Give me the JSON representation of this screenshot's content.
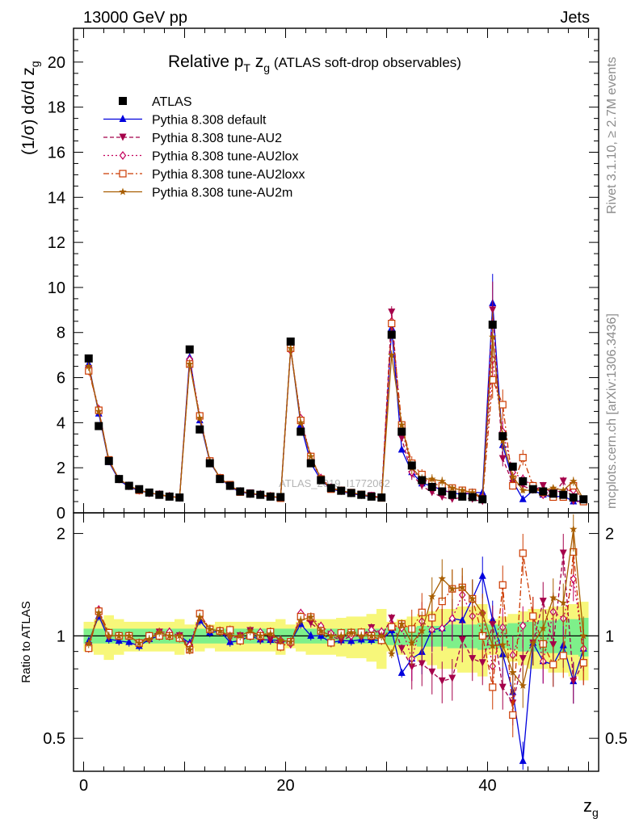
{
  "header": {
    "left": "13000 GeV pp",
    "right": "Jets"
  },
  "side_labels": {
    "rivet": "Rivet 3.1.10, ≥ 2.7M events",
    "mcplots": "mcplots.cern.ch [arXiv:1306.3436]"
  },
  "watermark": "ATLAS_2019_I1772062",
  "colors": {
    "data": "#000000",
    "default": "#0000dd",
    "au2": "#a5004a",
    "au2lox": "#c4005c",
    "au2loxx": "#cc3a00",
    "au2m": "#a85e00",
    "band_inner": "#7ef08a",
    "band_outer": "#f7f77a"
  },
  "chart_data": [
    {
      "type": "line",
      "panel": "main",
      "title_main": "Relative p",
      "title_sub_T": "T",
      "title_z": " z",
      "title_sub_g": "g",
      "title_rest": " (ATLAS soft-drop observables)",
      "ylabel": "(1/σ) dσ/d z",
      "ylabel_sub": "g",
      "ylim": [
        0,
        21.5
      ],
      "xlim": [
        -1,
        51
      ],
      "yticks": [
        0,
        2,
        4,
        6,
        8,
        10,
        12,
        14,
        16,
        18,
        20
      ],
      "ytick_labels": [
        "0",
        "2",
        "4",
        "6",
        "8",
        "10",
        "12",
        "14",
        "16",
        "18",
        "20"
      ],
      "legend_position": "top-left",
      "legend": [
        {
          "label": "ATLAS",
          "key": "data"
        },
        {
          "label": "Pythia 8.308 default",
          "key": "default"
        },
        {
          "label": "Pythia 8.308 tune-AU2",
          "key": "au2"
        },
        {
          "label": "Pythia 8.308 tune-AU2lox",
          "key": "au2lox"
        },
        {
          "label": "Pythia 8.308 tune-AU2loxx",
          "key": "au2loxx"
        },
        {
          "label": "Pythia 8.308 tune-AU2m",
          "key": "au2m"
        }
      ],
      "x": [
        0.5,
        1.5,
        2.5,
        3.5,
        4.5,
        5.5,
        6.5,
        7.5,
        8.5,
        9.5,
        10.5,
        11.5,
        12.5,
        13.5,
        14.5,
        15.5,
        16.5,
        17.5,
        18.5,
        19.5,
        20.5,
        21.5,
        22.5,
        23.5,
        24.5,
        25.5,
        26.5,
        27.5,
        28.5,
        29.5,
        30.5,
        31.5,
        32.5,
        33.5,
        34.5,
        35.5,
        36.5,
        37.5,
        38.5,
        39.5,
        40.5,
        41.5,
        42.5,
        43.5,
        44.5,
        45.5,
        46.5,
        47.5,
        48.5,
        49.5
      ],
      "series": [
        {
          "name": "ATLAS",
          "key": "data",
          "values": [
            6.85,
            3.85,
            2.3,
            1.5,
            1.2,
            1.05,
            0.9,
            0.8,
            0.72,
            0.68,
            7.25,
            3.7,
            2.2,
            1.5,
            1.2,
            0.95,
            0.85,
            0.8,
            0.72,
            0.7,
            7.6,
            3.6,
            2.2,
            1.45,
            1.1,
            0.98,
            0.88,
            0.8,
            0.72,
            0.68,
            7.9,
            3.6,
            2.1,
            1.45,
            1.15,
            0.95,
            0.8,
            0.72,
            0.7,
            0.6,
            8.35,
            3.4,
            2.05,
            1.4,
            1.05,
            0.95,
            0.85,
            0.8,
            0.68,
            0.6
          ]
        },
        {
          "name": "Pythia 8.308 default",
          "key": "default",
          "values": [
            6.6,
            4.4,
            2.25,
            1.45,
            1.15,
            0.98,
            0.88,
            0.8,
            0.72,
            0.68,
            6.9,
            4.1,
            2.25,
            1.55,
            1.15,
            0.92,
            0.85,
            0.78,
            0.7,
            0.68,
            7.3,
            3.9,
            2.2,
            1.45,
            1.05,
            0.95,
            0.85,
            0.78,
            0.7,
            0.66,
            8.2,
            2.8,
            1.8,
            1.3,
            1.2,
            1.0,
            0.9,
            0.8,
            0.9,
            0.9,
            9.3,
            3.0,
            1.4,
            0.6,
            1.0,
            0.8,
            0.7,
            0.75,
            0.5,
            0.55
          ]
        },
        {
          "name": "Pythia 8.308 tune-AU2",
          "key": "au2",
          "values": [
            6.4,
            4.5,
            2.3,
            1.5,
            1.2,
            1.0,
            0.9,
            0.82,
            0.72,
            0.68,
            6.7,
            4.2,
            2.3,
            1.55,
            1.18,
            0.95,
            0.88,
            0.78,
            0.7,
            0.66,
            7.3,
            4.1,
            2.4,
            1.5,
            1.1,
            0.95,
            0.88,
            0.8,
            0.76,
            0.68,
            8.9,
            3.3,
            1.7,
            1.2,
            0.9,
            0.7,
            0.6,
            0.7,
            0.6,
            0.5,
            9.0,
            2.4,
            1.3,
            1.2,
            1.0,
            1.2,
            0.8,
            1.4,
            0.5,
            0.5
          ]
        },
        {
          "name": "Pythia 8.308 tune-AU2lox",
          "key": "au2lox",
          "values": [
            6.4,
            4.6,
            2.3,
            1.5,
            1.2,
            1.0,
            0.88,
            0.82,
            0.74,
            0.68,
            6.8,
            4.3,
            2.3,
            1.55,
            1.2,
            0.95,
            0.85,
            0.82,
            0.74,
            0.68,
            7.2,
            4.2,
            2.5,
            1.55,
            1.12,
            0.98,
            0.88,
            0.8,
            0.75,
            0.7,
            8.5,
            3.8,
            1.8,
            1.6,
            1.2,
            1.0,
            0.9,
            0.95,
            0.8,
            0.7,
            6.8,
            3.6,
            1.8,
            1.5,
            1.2,
            0.8,
            1.0,
            0.9,
            1.0,
            0.55
          ]
        },
        {
          "name": "Pythia 8.308 tune-AU2loxx",
          "key": "au2loxx",
          "values": [
            6.3,
            4.55,
            2.35,
            1.5,
            1.2,
            1.0,
            0.9,
            0.8,
            0.72,
            0.67,
            6.6,
            4.3,
            2.3,
            1.55,
            1.25,
            0.92,
            0.85,
            0.8,
            0.74,
            0.65,
            7.3,
            4.1,
            2.5,
            1.5,
            1.05,
            1.0,
            0.9,
            0.82,
            0.72,
            0.66,
            8.4,
            3.9,
            2.2,
            1.7,
            1.3,
            1.2,
            1.1,
            1.0,
            0.9,
            0.6,
            5.9,
            4.8,
            1.2,
            2.45,
            1.2,
            0.9,
            0.7,
            0.7,
            1.2,
            0.5
          ]
        },
        {
          "name": "Pythia 8.308 tune-AU2m",
          "key": "au2m",
          "values": [
            6.5,
            4.5,
            2.3,
            1.5,
            1.2,
            1.0,
            0.88,
            0.82,
            0.72,
            0.68,
            6.6,
            4.2,
            2.3,
            1.55,
            1.2,
            0.95,
            0.88,
            0.8,
            0.73,
            0.68,
            7.3,
            4.0,
            2.5,
            1.5,
            1.1,
            0.98,
            0.9,
            0.8,
            0.72,
            0.68,
            7.0,
            3.9,
            2.0,
            1.5,
            1.5,
            1.4,
            1.1,
            1.0,
            0.9,
            0.7,
            7.8,
            3.2,
            1.6,
            1.0,
            1.0,
            1.0,
            1.1,
            1.0,
            1.4,
            0.6
          ]
        }
      ]
    },
    {
      "type": "line",
      "panel": "ratio",
      "ylabel": "Ratio to ATLAS",
      "xlabel": "z",
      "xlabel_sub": "g",
      "ylim": [
        0.4,
        2.3
      ],
      "yscale": "log",
      "xlim": [
        -1,
        51
      ],
      "xticks": [
        0,
        20,
        40
      ],
      "xtick_labels": [
        "0",
        "20",
        "40"
      ],
      "yticks": [
        0.5,
        1,
        2
      ],
      "ytick_labels": [
        "0.5",
        "1",
        "2"
      ],
      "band_inner": [
        0.05,
        0.05,
        0.05,
        0.05,
        0.05,
        0.05,
        0.05,
        0.05,
        0.05,
        0.05,
        0.05,
        0.05,
        0.05,
        0.05,
        0.05,
        0.05,
        0.05,
        0.05,
        0.05,
        0.05,
        0.05,
        0.05,
        0.05,
        0.05,
        0.05,
        0.05,
        0.05,
        0.05,
        0.05,
        0.05,
        0.06,
        0.06,
        0.06,
        0.07,
        0.07,
        0.07,
        0.08,
        0.08,
        0.08,
        0.09,
        0.08,
        0.08,
        0.09,
        0.1,
        0.1,
        0.11,
        0.11,
        0.12,
        0.12,
        0.13
      ],
      "band_outer": [
        0.1,
        0.12,
        0.15,
        0.12,
        0.1,
        0.1,
        0.1,
        0.1,
        0.1,
        0.12,
        0.08,
        0.1,
        0.08,
        0.1,
        0.1,
        0.1,
        0.1,
        0.1,
        0.1,
        0.12,
        0.08,
        0.1,
        0.12,
        0.12,
        0.12,
        0.13,
        0.14,
        0.14,
        0.16,
        0.2,
        0.1,
        0.12,
        0.14,
        0.16,
        0.18,
        0.2,
        0.2,
        0.22,
        0.22,
        0.24,
        0.12,
        0.14,
        0.16,
        0.18,
        0.2,
        0.2,
        0.22,
        0.22,
        0.24,
        0.26
      ]
    }
  ]
}
